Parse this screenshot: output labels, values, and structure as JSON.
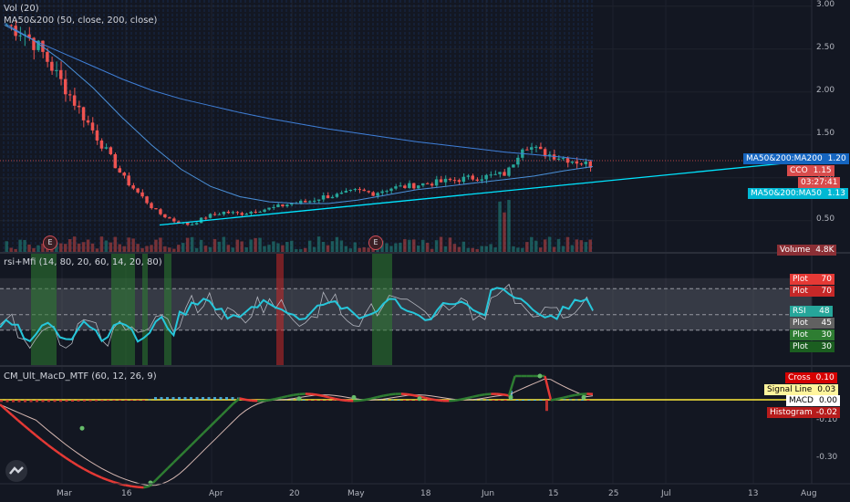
{
  "colors": {
    "bg": "#131722",
    "grid": "#1e222d",
    "up": "#26a69a",
    "down": "#ef5350",
    "ma200": "#2962ff",
    "ma50": "#00e5ff",
    "rsi": "#26c6da",
    "mfi": "#b2b5be",
    "macd_up": "#2e7d32",
    "macd_down": "#e53935",
    "signal": "#d7b8b2",
    "zero": "#ffeb3b"
  },
  "panes": {
    "main": {
      "labels": [
        "Vol (20)",
        "MA50&200 (50, close, 200, close)"
      ],
      "price_axis": [
        "3.00",
        "2.50",
        "2.00",
        "1.50",
        "1.00",
        "0.50"
      ],
      "ylim": [
        0.2,
        3.05
      ],
      "events": [
        "E",
        "E"
      ],
      "tags": [
        {
          "name": "MA50&200:MA200",
          "value": "1.20",
          "color": "#1565c0"
        },
        {
          "name": "CCO",
          "value": "1.15",
          "color": "#d84c4c"
        },
        {
          "name": "",
          "value": "03:27:41",
          "color": "#d84c4c"
        },
        {
          "name": "MA50&200:MA50",
          "value": "1.13",
          "color": "#00b8d4"
        },
        {
          "name": "Volume",
          "value": "4.8K",
          "color": "#8b2f35"
        }
      ]
    },
    "rsi": {
      "label": "rsi+Mfi (14, 80, 20, 60, 14, 20, 80)",
      "tags": [
        {
          "name": "Plot",
          "value": "70",
          "color": "#e53935"
        },
        {
          "name": "Plot",
          "value": "70",
          "color": "#c62828"
        },
        {
          "name": "RSI",
          "value": "48",
          "color": "#26a69a"
        },
        {
          "name": "Plot",
          "value": "45",
          "color": "#616161"
        },
        {
          "name": "Plot",
          "value": "30",
          "color": "#2e7d32"
        },
        {
          "name": "Plot",
          "value": "30",
          "color": "#1b5e20"
        }
      ]
    },
    "macd": {
      "label": "CM_Ult_MacD_MTF (60, 12, 26, 9)",
      "axis": [
        "-0.10",
        "-0.30"
      ],
      "tags": [
        {
          "name": "Cross",
          "value": "0.10",
          "color": "#d50000"
        },
        {
          "name": "Signal Line",
          "value": "0.03",
          "color": "#fff59d",
          "text": "#000000"
        },
        {
          "name": "MACD",
          "value": "0.00",
          "color": "#ffffff",
          "text": "#000000"
        },
        {
          "name": "Histogram",
          "value": "-0.02",
          "color": "#b71c1c"
        }
      ]
    }
  },
  "time_axis": [
    "Mar",
    "16",
    "Apr",
    "20",
    "May",
    "18",
    "Jun",
    "15",
    "25",
    "Jul",
    "13",
    "Aug"
  ],
  "chart_data": {
    "type": "line",
    "title": "",
    "series": [
      {
        "name": "CCO",
        "values": [
          2.78,
          2.7,
          2.5,
          2.2,
          1.9,
          1.6,
          1.3,
          1.0,
          0.8,
          0.6,
          0.5,
          0.45,
          0.55,
          0.6,
          0.58,
          0.62,
          0.65,
          0.7,
          0.72,
          0.78,
          0.8,
          0.85,
          0.82,
          0.88,
          0.9,
          0.93,
          0.95,
          0.98,
          1.0,
          1.02,
          1.05,
          1.4,
          1.3,
          1.25,
          1.2,
          1.15
        ]
      },
      {
        "name": "MA50&200:MA200",
        "values": [
          2.8,
          2.6,
          2.45,
          2.3,
          2.15,
          2.02,
          1.92,
          1.84,
          1.76,
          1.69,
          1.63,
          1.57,
          1.52,
          1.47,
          1.42,
          1.38,
          1.34,
          1.3,
          1.27,
          1.24,
          1.2
        ]
      },
      {
        "name": "MA50&200:MA50",
        "values": [
          2.78,
          2.6,
          2.35,
          2.05,
          1.7,
          1.38,
          1.1,
          0.9,
          0.78,
          0.72,
          0.7,
          0.7,
          0.74,
          0.8,
          0.86,
          0.9,
          0.94,
          0.98,
          1.02,
          1.08,
          1.13
        ]
      }
    ],
    "ylim": [
      0.2,
      3.05
    ]
  }
}
